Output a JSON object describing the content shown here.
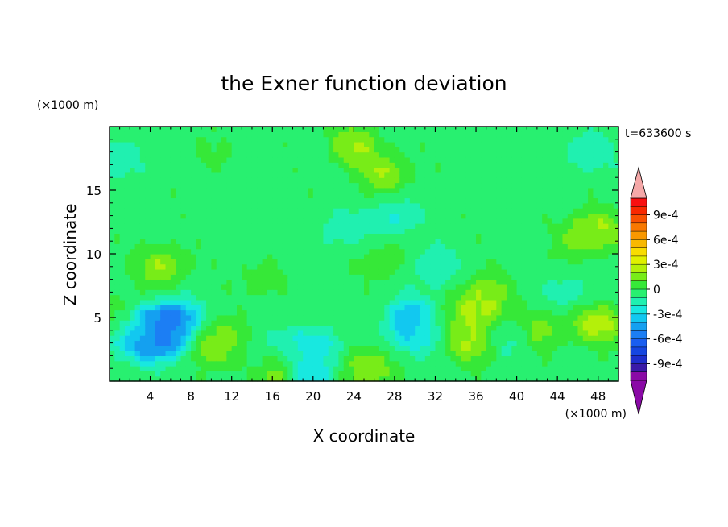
{
  "chart_data": {
    "type": "heatmap",
    "title": "the Exner function deviation",
    "xlabel": "X coordinate",
    "ylabel": "Z coordinate",
    "x_units": "(×1000 m)",
    "y_units": "(×1000 m)",
    "time_label": "t=633600 s",
    "xlim": [
      0,
      50
    ],
    "ylim": [
      0,
      20
    ],
    "x_ticks": [
      4,
      8,
      12,
      16,
      20,
      24,
      28,
      32,
      36,
      40,
      44,
      48
    ],
    "x_tick_labels": [
      "4",
      "8",
      "12",
      "16",
      "20",
      "24",
      "28",
      "32",
      "36",
      "40",
      "44",
      "48"
    ],
    "y_ticks": [
      5,
      10,
      15
    ],
    "y_tick_labels": [
      "5",
      "10",
      "15"
    ],
    "colorbar": {
      "levels": [
        -0.0011,
        -0.001,
        -0.0009,
        -0.0008,
        -0.0007,
        -0.0006,
        -0.0005,
        -0.0004,
        -0.0003,
        -0.0002,
        -0.0001,
        0,
        0.0001,
        0.0002,
        0.0003,
        0.0004,
        0.0005,
        0.0006,
        0.0007,
        0.0008,
        0.0009,
        0.001,
        0.0011
      ],
      "colors": [
        "#8a0aa6",
        "#3a1aa8",
        "#1e2ecc",
        "#1646e0",
        "#1a5ef0",
        "#1c7ef4",
        "#14a0f0",
        "#12c8f0",
        "#18e8e0",
        "#20f0b0",
        "#28f070",
        "#36e838",
        "#78ec18",
        "#b4f00a",
        "#e0f000",
        "#f8dc00",
        "#f8b800",
        "#f89800",
        "#f87800",
        "#f85000",
        "#f82800",
        "#f81010"
      ],
      "under_color": "#8a0aa6",
      "over_color": "#f5a8a8",
      "tick_values": [
        0.0009,
        0.0006,
        0.0003,
        0,
        -0.0003,
        -0.0006,
        -0.0009
      ],
      "tick_labels": [
        "9e-4",
        "6e-4",
        "3e-4",
        "0",
        "-3e-4",
        "-6e-4",
        "-9e-4"
      ]
    },
    "field_features": [
      {
        "x": 0,
        "z": 20,
        "v": -5e-05
      },
      {
        "x": 5,
        "z": 4,
        "v": -0.00065
      },
      {
        "x": 4,
        "z": 3,
        "v": -0.00045
      },
      {
        "x": 6.5,
        "z": 4.8,
        "v": -0.0005
      },
      {
        "x": 2,
        "z": 4,
        "v": -0.00028
      },
      {
        "x": 20.5,
        "z": 1,
        "v": -0.00045
      },
      {
        "x": 20.5,
        "z": 2.5,
        "v": -0.0003
      },
      {
        "x": 30,
        "z": 5,
        "v": -0.00045
      },
      {
        "x": 30,
        "z": 3.5,
        "v": -0.00025
      },
      {
        "x": 39,
        "z": 3.5,
        "v": -0.00022
      },
      {
        "x": 14,
        "z": 2,
        "v": -0.0002
      },
      {
        "x": 18,
        "z": 3,
        "v": -0.00015
      },
      {
        "x": 23,
        "z": 12,
        "v": -0.00018
      },
      {
        "x": 28,
        "z": 13,
        "v": -0.0002
      },
      {
        "x": 32,
        "z": 9,
        "v": -0.0002
      },
      {
        "x": 45,
        "z": 7,
        "v": -0.00015
      },
      {
        "x": 1,
        "z": 17.5,
        "v": -0.00018
      },
      {
        "x": 47,
        "z": 18,
        "v": -0.0002
      },
      {
        "x": 40,
        "z": 17,
        "v": -5e-05
      },
      {
        "x": 24,
        "z": 18.5,
        "v": 0.00022
      },
      {
        "x": 27,
        "z": 16.3,
        "v": 0.0002
      },
      {
        "x": 36,
        "z": 5,
        "v": 0.00028
      },
      {
        "x": 35.5,
        "z": 3,
        "v": 0.00025
      },
      {
        "x": 37,
        "z": 7,
        "v": 0.00018
      },
      {
        "x": 48,
        "z": 12,
        "v": 0.00022
      },
      {
        "x": 46,
        "z": 11,
        "v": 0.0001
      },
      {
        "x": 5,
        "z": 9,
        "v": 0.0002
      },
      {
        "x": 11.5,
        "z": 2.6,
        "v": 0.00025
      },
      {
        "x": 10,
        "z": 3.5,
        "v": 0.00012
      },
      {
        "x": 16,
        "z": 1,
        "v": 0.00022
      },
      {
        "x": 23,
        "z": 1.2,
        "v": 0.0002
      },
      {
        "x": 26,
        "z": 0.8,
        "v": 0.00015
      },
      {
        "x": 42,
        "z": 4,
        "v": 0.00018
      },
      {
        "x": 48,
        "z": 4.5,
        "v": 0.00028
      },
      {
        "x": 0.5,
        "z": 5,
        "v": 0.00015
      },
      {
        "x": 33,
        "z": 5,
        "v": 8e-05
      },
      {
        "x": 10,
        "z": 18,
        "v": 2e-05
      },
      {
        "x": 15,
        "z": 8,
        "v": 5e-05
      },
      {
        "x": 27,
        "z": 9.5,
        "v": 8e-05
      }
    ]
  }
}
